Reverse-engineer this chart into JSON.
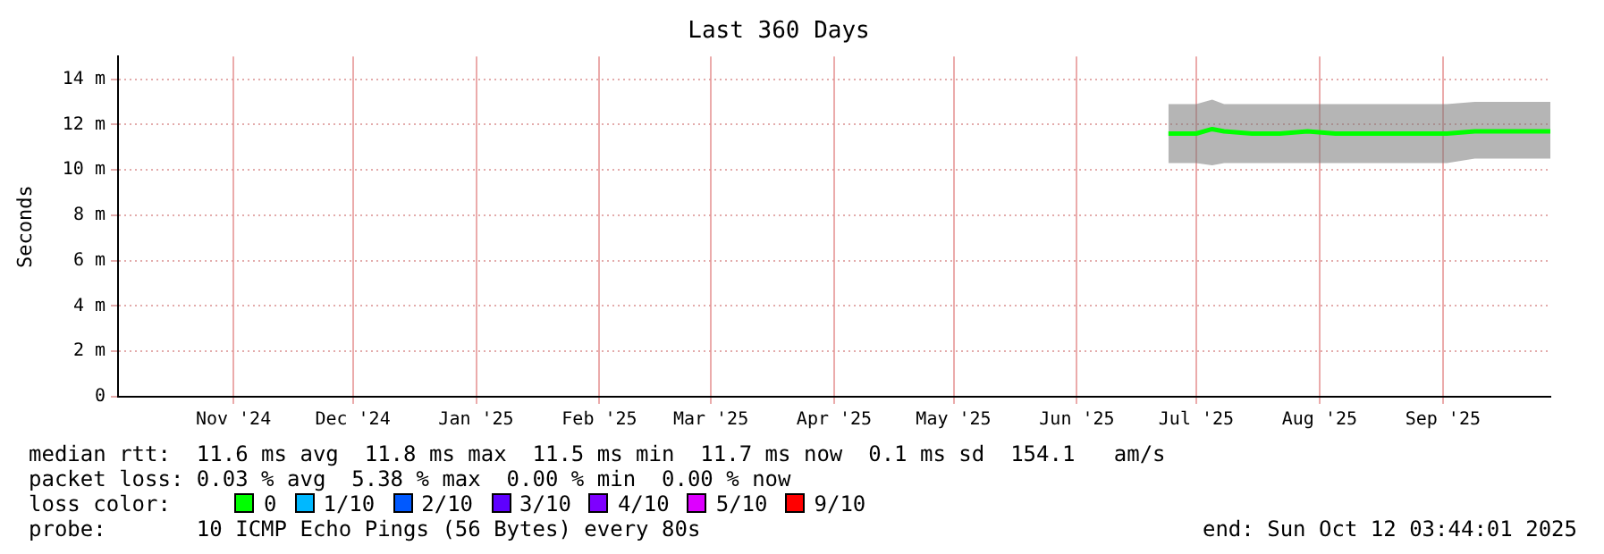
{
  "chart_data": {
    "type": "line",
    "title": "Last 360 Days",
    "ylabel": "Seconds",
    "xlim": [
      "2024-10-17",
      "2025-10-12"
    ],
    "xticks": [
      {
        "value": "2024-11-15",
        "label": "Nov '24"
      },
      {
        "value": "2024-12-15",
        "label": "Dec '24"
      },
      {
        "value": "2025-01-15",
        "label": "Jan '25"
      },
      {
        "value": "2025-02-15",
        "label": "Feb '25"
      },
      {
        "value": "2025-03-15",
        "label": "Mar '25"
      },
      {
        "value": "2025-04-15",
        "label": "Apr '25"
      },
      {
        "value": "2025-05-15",
        "label": "May '25"
      },
      {
        "value": "2025-06-15",
        "label": "Jun '25"
      },
      {
        "value": "2025-07-15",
        "label": "Jul '25"
      },
      {
        "value": "2025-08-15",
        "label": "Aug '25"
      },
      {
        "value": "2025-09-15",
        "label": "Sep '25"
      }
    ],
    "ylim": [
      0,
      15
    ],
    "yticks": [
      {
        "value": 0,
        "label": "0"
      },
      {
        "value": 2,
        "label": "2 m"
      },
      {
        "value": 4,
        "label": "4 m"
      },
      {
        "value": 6,
        "label": "6 m"
      },
      {
        "value": 8,
        "label": "8 m"
      },
      {
        "value": 10,
        "label": "10 m"
      },
      {
        "value": 12,
        "label": "12 m"
      },
      {
        "value": 14,
        "label": "14 m"
      }
    ],
    "grid": true,
    "legend": "bottom",
    "legend_title": "loss color:",
    "marker": "none",
    "line_style": "solid",
    "series": [
      {
        "name": "0",
        "color": "#00ff00",
        "x": [
          "2025-07-08",
          "2025-07-15",
          "2025-07-19",
          "2025-07-22",
          "2025-07-29",
          "2025-08-05",
          "2025-08-12",
          "2025-08-19",
          "2025-08-26",
          "2025-09-02",
          "2025-09-09",
          "2025-09-16",
          "2025-09-23",
          "2025-09-30",
          "2025-10-07",
          "2025-10-12"
        ],
        "values": [
          11.6,
          11.6,
          11.8,
          11.7,
          11.6,
          11.6,
          11.7,
          11.6,
          11.6,
          11.6,
          11.6,
          11.6,
          11.7,
          11.7,
          11.7,
          11.7
        ],
        "lower": [
          10.3,
          10.3,
          10.2,
          10.3,
          10.3,
          10.3,
          10.3,
          10.3,
          10.3,
          10.3,
          10.3,
          10.3,
          10.5,
          10.5,
          10.5,
          10.5
        ],
        "upper": [
          12.9,
          12.9,
          13.1,
          12.9,
          12.9,
          12.9,
          12.9,
          12.9,
          12.9,
          12.9,
          12.9,
          12.9,
          13.0,
          13.0,
          13.0,
          13.0
        ]
      },
      {
        "name": "1/10",
        "color": "#00b8ff"
      },
      {
        "name": "2/10",
        "color": "#0059ff"
      },
      {
        "name": "3/10",
        "color": "#5e00ff"
      },
      {
        "name": "4/10",
        "color": "#7e00ff"
      },
      {
        "name": "5/10",
        "color": "#dd00ff"
      },
      {
        "name": "9/10",
        "color": "#ff0000"
      }
    ],
    "annotations": [
      "median rtt:  11.6 ms avg  11.8 ms max  11.5 ms min  11.7 ms now  0.1 ms sd  154.1   am/s",
      "packet loss: 0.03 % avg  5.38 % max  0.00 % min  0.00 % now",
      "probe:       10 ICMP Echo Pings (56 Bytes) every 80s",
      "end: Sun Oct 12 03:44:01 2025"
    ]
  }
}
